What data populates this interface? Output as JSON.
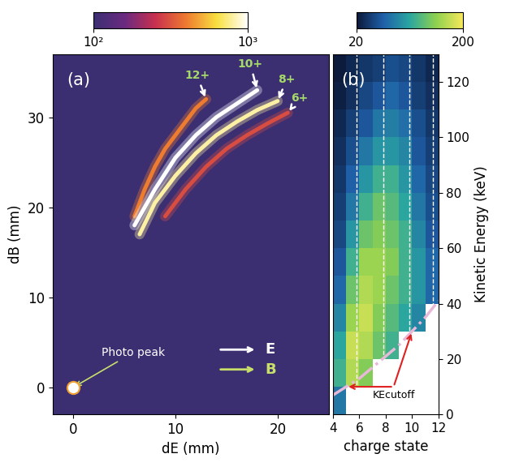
{
  "chart_data": [
    {
      "type": "line",
      "panel_label": "(a)",
      "x_label": "dE (mm)",
      "y_label": "dB (mm)",
      "xlim": [
        -2,
        25
      ],
      "ylim": [
        -3,
        37
      ],
      "xticks": [
        0,
        10,
        20
      ],
      "yticks": [
        0,
        10,
        20,
        30
      ],
      "series": [
        {
          "name": "12+",
          "x": [
            6,
            7,
            8,
            9,
            10,
            11,
            12,
            13
          ],
          "values": [
            19,
            22,
            24.5,
            26.5,
            28,
            29.5,
            31,
            32
          ],
          "intensity": 400
        },
        {
          "name": "10+",
          "x": [
            6,
            8,
            10,
            12,
            14,
            16,
            18
          ],
          "values": [
            18,
            22,
            25.5,
            28,
            30,
            31.5,
            33
          ],
          "intensity": 1000
        },
        {
          "name": "8+",
          "x": [
            6.5,
            8,
            10,
            12,
            14,
            16,
            18,
            20
          ],
          "values": [
            17,
            20.5,
            23.5,
            26,
            28,
            29.5,
            30.8,
            31.8
          ],
          "intensity": 800
        },
        {
          "name": "6+",
          "x": [
            9,
            11,
            13,
            15,
            17,
            19,
            21
          ],
          "values": [
            19,
            22,
            24.5,
            26.5,
            28,
            29.3,
            30.5
          ],
          "intensity": 300
        }
      ],
      "photo_peak": {
        "label": "Photo peak",
        "x": 0,
        "y": 0,
        "intensity": 1000
      },
      "field_arrows": [
        "E",
        "B"
      ],
      "colorbar": {
        "range": [
          100,
          1000
        ],
        "log": true,
        "ticks": [
          {
            "value": 100,
            "label": "10²"
          },
          {
            "value": 1000,
            "label": "10³"
          }
        ]
      }
    },
    {
      "type": "heatmap",
      "panel_label": "(b)",
      "x_label": "charge state",
      "y_label": "Kinetic Energy (keV)",
      "xlim": [
        4,
        12
      ],
      "ylim": [
        0,
        130
      ],
      "xticks": [
        4,
        6,
        8,
        10,
        12
      ],
      "yticks": [
        0,
        20,
        40,
        60,
        80,
        100,
        120
      ],
      "x_edges": [
        4,
        5,
        6,
        7,
        8,
        9,
        10,
        11,
        12
      ],
      "y_edges": [
        0,
        10,
        20,
        30,
        40,
        50,
        60,
        70,
        80,
        90,
        100,
        110,
        120,
        130
      ],
      "cells": [
        [
          80,
          null,
          null,
          null,
          null,
          null,
          null,
          null
        ],
        [
          120,
          170,
          150,
          null,
          null,
          null,
          null,
          null
        ],
        [
          110,
          180,
          170,
          140,
          120,
          null,
          null,
          null
        ],
        [
          90,
          160,
          180,
          150,
          130,
          110,
          90,
          null
        ],
        [
          70,
          140,
          170,
          160,
          140,
          120,
          100,
          70
        ],
        [
          60,
          120,
          160,
          160,
          150,
          120,
          100,
          70
        ],
        [
          50,
          100,
          140,
          150,
          140,
          120,
          90,
          60
        ],
        [
          45,
          80,
          120,
          140,
          130,
          110,
          80,
          55
        ],
        [
          40,
          65,
          100,
          120,
          120,
          100,
          70,
          50
        ],
        [
          35,
          55,
          80,
          100,
          100,
          90,
          60,
          45
        ],
        [
          30,
          45,
          60,
          80,
          85,
          75,
          55,
          40
        ],
        [
          25,
          35,
          50,
          60,
          70,
          60,
          45,
          35
        ],
        [
          22,
          30,
          40,
          45,
          55,
          50,
          40,
          30
        ]
      ],
      "reference_lines": [
        5.8,
        7.8,
        9.8,
        11.6
      ],
      "cutoff": {
        "x": [
          4,
          5,
          6,
          7,
          8,
          9,
          10,
          11,
          12
        ],
        "values": [
          7,
          10,
          13,
          17,
          21,
          25,
          30,
          35,
          41
        ]
      },
      "annotation": {
        "text": "KEcutoff",
        "points": [
          [
            5,
            10
          ],
          [
            10,
            30
          ]
        ]
      },
      "colorbar": {
        "range": [
          20,
          200
        ],
        "ticks": [
          20,
          200
        ]
      }
    }
  ]
}
